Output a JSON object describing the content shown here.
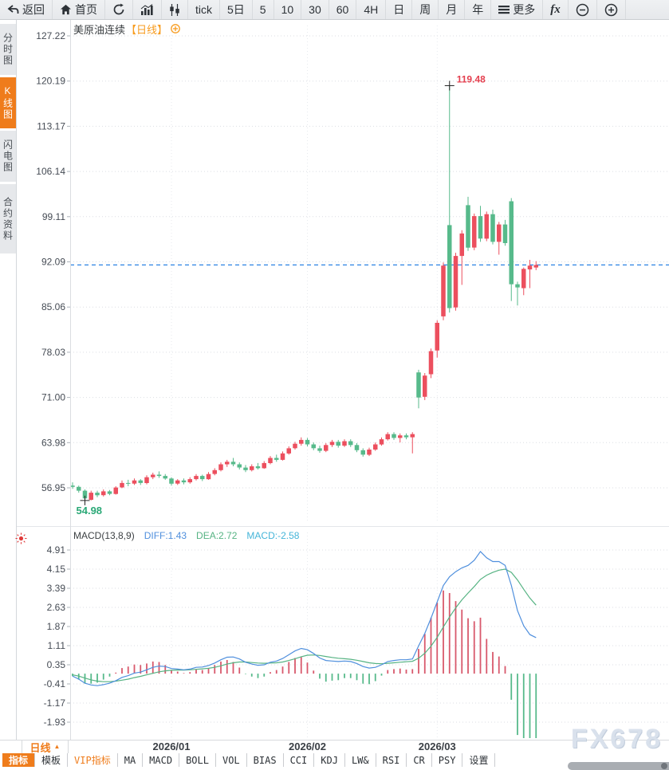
{
  "toolbar": {
    "back": "返回",
    "home": "首页",
    "tick": "tick",
    "d5": "5日",
    "m5": "5",
    "m10": "10",
    "m30": "30",
    "m60": "60",
    "h4": "4H",
    "day": "日",
    "week": "周",
    "month": "月",
    "year": "年",
    "more": "更多",
    "fx": "fx"
  },
  "sidebar": {
    "tabs": [
      {
        "label": "分时图",
        "active": false
      },
      {
        "label": "K线图",
        "active": true
      },
      {
        "label": "闪电图",
        "active": false
      },
      {
        "label": "合约资料",
        "active": false
      }
    ]
  },
  "bottom": {
    "period_label": "日线",
    "tabs": [
      "指标",
      "模板",
      "VIP指标",
      "MA",
      "MACD",
      "BOLL",
      "VOL",
      "BIAS",
      "CCI",
      "KDJ",
      "LW&",
      "RSI",
      "CR",
      "PSY",
      "设置"
    ]
  },
  "watermark": "FX678",
  "chart_data": [
    {
      "type": "candlestick",
      "symbol": "美原油连续",
      "period_tag": "【日线】",
      "y_ticks": [
        "127.22",
        "120.19",
        "113.17",
        "106.14",
        "99.11",
        "92.09",
        "85.06",
        "78.03",
        "71.00",
        "63.98",
        "56.95"
      ],
      "x_ticks": [
        "2026/01",
        "2026/02",
        "2026/03"
      ],
      "x_tick_indices": [
        16,
        38,
        59
      ],
      "high_label": "119.48",
      "high_idx": 61,
      "low_label": "54.98",
      "low_idx": 2,
      "colors": {
        "up": "#ec4f5e",
        "down": "#57ba8b",
        "price_line": "#2a82e4"
      },
      "candles": [
        [
          57.3,
          57.8,
          56.8,
          57.1
        ],
        [
          57.1,
          57.3,
          56.2,
          56.5
        ],
        [
          56.5,
          56.7,
          54.98,
          55.3
        ],
        [
          55.1,
          56.5,
          54.99,
          56.2
        ],
        [
          56.2,
          56.5,
          55.5,
          55.8
        ],
        [
          55.8,
          56.7,
          55.6,
          56.4
        ],
        [
          56.4,
          56.6,
          55.8,
          56.0
        ],
        [
          56.0,
          57.2,
          55.9,
          57.0
        ],
        [
          57.0,
          58.1,
          56.9,
          57.7
        ],
        [
          57.7,
          58.2,
          57.2,
          57.6
        ],
        [
          57.6,
          58.4,
          57.4,
          58.1
        ],
        [
          58.1,
          58.3,
          57.4,
          57.7
        ],
        [
          57.7,
          58.9,
          57.5,
          58.6
        ],
        [
          58.6,
          59.3,
          58.3,
          59.0
        ],
        [
          59.0,
          59.5,
          58.5,
          58.8
        ],
        [
          58.8,
          59.1,
          58.2,
          58.4
        ],
        [
          58.4,
          58.6,
          57.3,
          57.6
        ],
        [
          57.6,
          58.3,
          57.4,
          58.1
        ],
        [
          58.1,
          58.4,
          57.5,
          57.8
        ],
        [
          57.8,
          58.6,
          57.6,
          58.3
        ],
        [
          58.3,
          59.1,
          58.1,
          58.8
        ],
        [
          58.8,
          59.0,
          58.0,
          58.3
        ],
        [
          58.3,
          59.4,
          58.2,
          59.1
        ],
        [
          59.1,
          60.0,
          58.9,
          59.7
        ],
        [
          59.7,
          60.9,
          59.5,
          60.6
        ],
        [
          60.6,
          61.3,
          60.2,
          61.0
        ],
        [
          61.0,
          61.6,
          60.3,
          60.6
        ],
        [
          60.6,
          60.9,
          59.8,
          60.1
        ],
        [
          60.1,
          60.5,
          59.4,
          59.7
        ],
        [
          59.7,
          60.6,
          59.5,
          60.3
        ],
        [
          60.3,
          60.8,
          59.8,
          60.0
        ],
        [
          60.0,
          61.1,
          59.9,
          60.8
        ],
        [
          60.8,
          61.9,
          60.6,
          61.6
        ],
        [
          61.6,
          62.1,
          61.0,
          61.3
        ],
        [
          61.3,
          62.6,
          61.2,
          62.3
        ],
        [
          62.3,
          63.4,
          62.1,
          63.1
        ],
        [
          63.1,
          64.1,
          62.9,
          63.8
        ],
        [
          63.8,
          64.8,
          63.5,
          64.4
        ],
        [
          64.4,
          64.7,
          63.4,
          63.7
        ],
        [
          63.7,
          64.0,
          62.8,
          63.1
        ],
        [
          63.1,
          63.5,
          62.4,
          62.7
        ],
        [
          62.7,
          63.9,
          62.5,
          63.6
        ],
        [
          63.6,
          64.4,
          63.3,
          64.1
        ],
        [
          64.1,
          64.4,
          63.2,
          63.5
        ],
        [
          63.5,
          64.5,
          63.3,
          64.2
        ],
        [
          64.2,
          64.5,
          63.3,
          63.6
        ],
        [
          63.6,
          63.9,
          62.5,
          62.8
        ],
        [
          62.8,
          63.1,
          61.8,
          62.1
        ],
        [
          62.1,
          63.2,
          61.9,
          62.9
        ],
        [
          62.9,
          64.0,
          62.7,
          63.7
        ],
        [
          63.7,
          64.8,
          63.5,
          64.5
        ],
        [
          64.5,
          65.6,
          64.3,
          65.3
        ],
        [
          65.3,
          65.6,
          64.4,
          64.7
        ],
        [
          64.7,
          65.4,
          64.0,
          65.1
        ],
        [
          65.1,
          65.4,
          64.5,
          64.8
        ],
        [
          64.8,
          65.6,
          62.3,
          65.3
        ],
        [
          74.9,
          75.3,
          69.3,
          71.0
        ],
        [
          71.1,
          74.8,
          70.6,
          74.4
        ],
        [
          74.6,
          78.6,
          74.0,
          78.2
        ],
        [
          78.3,
          83.0,
          77.2,
          82.6
        ],
        [
          83.6,
          92.0,
          83.0,
          91.5
        ],
        [
          97.8,
          119.48,
          84.2,
          84.9
        ],
        [
          85.0,
          93.5,
          84.5,
          93.0
        ],
        [
          93.0,
          97.0,
          88.5,
          96.5
        ],
        [
          100.9,
          102.2,
          93.8,
          94.3
        ],
        [
          94.3,
          99.6,
          93.9,
          99.2
        ],
        [
          99.2,
          100.8,
          95.2,
          95.7
        ],
        [
          95.7,
          99.9,
          95.3,
          99.5
        ],
        [
          99.5,
          100.2,
          94.8,
          95.2
        ],
        [
          95.2,
          98.3,
          93.2,
          97.9
        ],
        [
          97.9,
          98.6,
          94.6,
          95.0
        ],
        [
          101.5,
          102.0,
          86.0,
          88.6
        ],
        [
          88.6,
          89.0,
          85.3,
          88.1
        ],
        [
          88.0,
          91.2,
          86.9,
          91.0
        ],
        [
          90.9,
          92.4,
          88.0,
          91.5
        ],
        [
          91.2,
          92.2,
          90.8,
          91.6
        ]
      ]
    },
    {
      "type": "macd",
      "header": "MACD(13,8,9)",
      "diff_label": "DIFF:1.43",
      "dea_label": "DEA:2.72",
      "macd_label": "MACD:-2.58",
      "y_ticks": [
        "4.91",
        "4.15",
        "3.39",
        "2.63",
        "1.87",
        "1.11",
        "0.35",
        "-0.41",
        "-1.17",
        "-1.93"
      ],
      "colors": {
        "diff": "#4f8fdd",
        "dea": "#56b383",
        "pos": "#d8596c",
        "neg": "#57ba8b"
      },
      "diff": [
        -0.1,
        -0.22,
        -0.38,
        -0.45,
        -0.48,
        -0.44,
        -0.38,
        -0.28,
        -0.15,
        -0.08,
        0.02,
        0.06,
        0.15,
        0.25,
        0.3,
        0.28,
        0.2,
        0.18,
        0.15,
        0.18,
        0.25,
        0.26,
        0.32,
        0.42,
        0.55,
        0.65,
        0.66,
        0.58,
        0.45,
        0.38,
        0.33,
        0.35,
        0.45,
        0.5,
        0.6,
        0.75,
        0.9,
        1.0,
        0.95,
        0.8,
        0.62,
        0.52,
        0.5,
        0.48,
        0.5,
        0.48,
        0.4,
        0.28,
        0.22,
        0.25,
        0.35,
        0.48,
        0.52,
        0.55,
        0.55,
        0.58,
        1.1,
        1.6,
        2.2,
        2.85,
        3.5,
        3.85,
        4.05,
        4.2,
        4.3,
        4.5,
        4.85,
        4.6,
        4.45,
        4.45,
        4.3,
        3.5,
        2.5,
        1.9,
        1.55,
        1.43
      ],
      "dea": [
        -0.05,
        -0.1,
        -0.18,
        -0.25,
        -0.3,
        -0.32,
        -0.32,
        -0.3,
        -0.26,
        -0.22,
        -0.16,
        -0.11,
        -0.05,
        0.01,
        0.07,
        0.11,
        0.13,
        0.14,
        0.14,
        0.15,
        0.17,
        0.19,
        0.21,
        0.25,
        0.31,
        0.38,
        0.43,
        0.46,
        0.46,
        0.44,
        0.42,
        0.41,
        0.42,
        0.43,
        0.46,
        0.52,
        0.59,
        0.67,
        0.73,
        0.74,
        0.72,
        0.68,
        0.64,
        0.61,
        0.59,
        0.57,
        0.53,
        0.48,
        0.43,
        0.4,
        0.39,
        0.41,
        0.43,
        0.45,
        0.47,
        0.49,
        0.61,
        0.81,
        1.09,
        1.44,
        1.85,
        2.25,
        2.61,
        2.93,
        3.2,
        3.46,
        3.74,
        3.91,
        4.02,
        4.11,
        4.15,
        4.02,
        3.72,
        3.35,
        3.0,
        2.72
      ]
    }
  ]
}
